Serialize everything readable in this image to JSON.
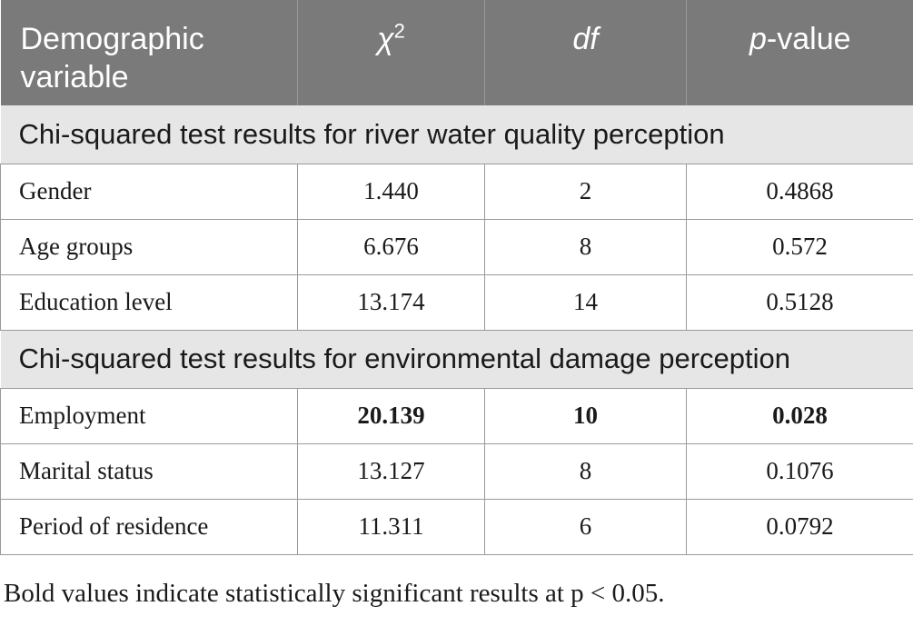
{
  "table": {
    "headers": {
      "variable_line1": "Demographic",
      "variable_line2": "variable",
      "chi_symbol": "χ",
      "chi_superscript": "2",
      "df": "df",
      "p_italic": "p",
      "p_rest": "-value"
    },
    "sections": [
      {
        "title": "Chi-squared test results for river water quality perception",
        "rows": [
          {
            "variable": "Gender",
            "chi2": "1.440",
            "df": "2",
            "p": "0.4868",
            "bold": false
          },
          {
            "variable": "Age groups",
            "chi2": "6.676",
            "df": "8",
            "p": "0.572",
            "bold": false
          },
          {
            "variable": "Education level",
            "chi2": "13.174",
            "df": "14",
            "p": "0.5128",
            "bold": false
          }
        ]
      },
      {
        "title": "Chi-squared test results for environmental damage perception",
        "rows": [
          {
            "variable": "Employment",
            "chi2": "20.139",
            "df": "10",
            "p": "0.028",
            "bold": true
          },
          {
            "variable": "Marital status",
            "chi2": "13.127",
            "df": "8",
            "p": "0.1076",
            "bold": false
          },
          {
            "variable": "Period of residence",
            "chi2": "11.311",
            "df": "6",
            "p": "0.0792",
            "bold": false
          }
        ]
      }
    ]
  },
  "footnote": "Bold values indicate statistically significant results at p < 0.05.",
  "colors": {
    "header_bg": "#7a7a7a",
    "section_bg": "#e6e6e6",
    "border": "#9a9a9a"
  }
}
